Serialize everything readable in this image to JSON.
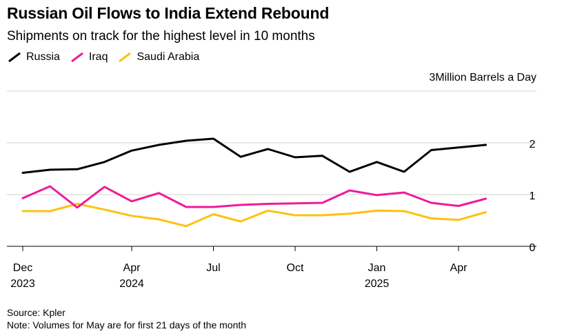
{
  "title": "Russian Oil Flows to India Extend Rebound",
  "subtitle": "Shipments on track for the highest level in 10 months",
  "unit_label": "3Million Barrels a Day",
  "source": "Source: Kpler",
  "note": "Note: Volumes for May are for first 21 days of the month",
  "colors": {
    "Russia": "#000000",
    "Iraq": "#f0199a",
    "Saudi Arabia": "#fcc20c",
    "grid": "#d0d0d0",
    "axis": "#000000"
  },
  "chart_data": {
    "type": "line",
    "title": "Russian Oil Flows to India Extend Rebound",
    "subtitle": "Shipments on track for the highest level in 10 months",
    "ylabel": "Million Barrels a Day",
    "ylim": [
      0,
      3
    ],
    "yticks": [
      0,
      1,
      2
    ],
    "legend_position": "top-left",
    "grid": true,
    "x": [
      "2023-12",
      "2024-01",
      "2024-02",
      "2024-03",
      "2024-04",
      "2024-05",
      "2024-06",
      "2024-07",
      "2024-08",
      "2024-09",
      "2024-10",
      "2024-11",
      "2024-12",
      "2025-01",
      "2025-02",
      "2025-03",
      "2025-04",
      "2025-05"
    ],
    "xticks": [
      {
        "month_index": 0,
        "label": "Dec",
        "year": "2023"
      },
      {
        "month_index": 4,
        "label": "Apr",
        "year": "2024"
      },
      {
        "month_index": 7,
        "label": "Jul",
        "year": ""
      },
      {
        "month_index": 10,
        "label": "Oct",
        "year": ""
      },
      {
        "month_index": 13,
        "label": "Jan",
        "year": "2025"
      },
      {
        "month_index": 16,
        "label": "Apr",
        "year": ""
      }
    ],
    "series": [
      {
        "name": "Russia",
        "values": [
          1.42,
          1.48,
          1.49,
          1.63,
          1.85,
          1.96,
          2.04,
          2.08,
          1.73,
          1.88,
          1.72,
          1.75,
          1.44,
          1.63,
          1.44,
          1.86,
          1.91,
          1.96
        ]
      },
      {
        "name": "Iraq",
        "values": [
          0.93,
          1.16,
          0.75,
          1.15,
          0.87,
          1.03,
          0.76,
          0.76,
          0.8,
          0.82,
          0.83,
          0.84,
          1.08,
          0.99,
          1.04,
          0.84,
          0.78,
          0.92
        ]
      },
      {
        "name": "Saudi Arabia",
        "values": [
          0.68,
          0.68,
          0.82,
          0.71,
          0.59,
          0.52,
          0.39,
          0.62,
          0.48,
          0.69,
          0.6,
          0.6,
          0.63,
          0.69,
          0.68,
          0.54,
          0.51,
          0.66
        ]
      }
    ]
  }
}
